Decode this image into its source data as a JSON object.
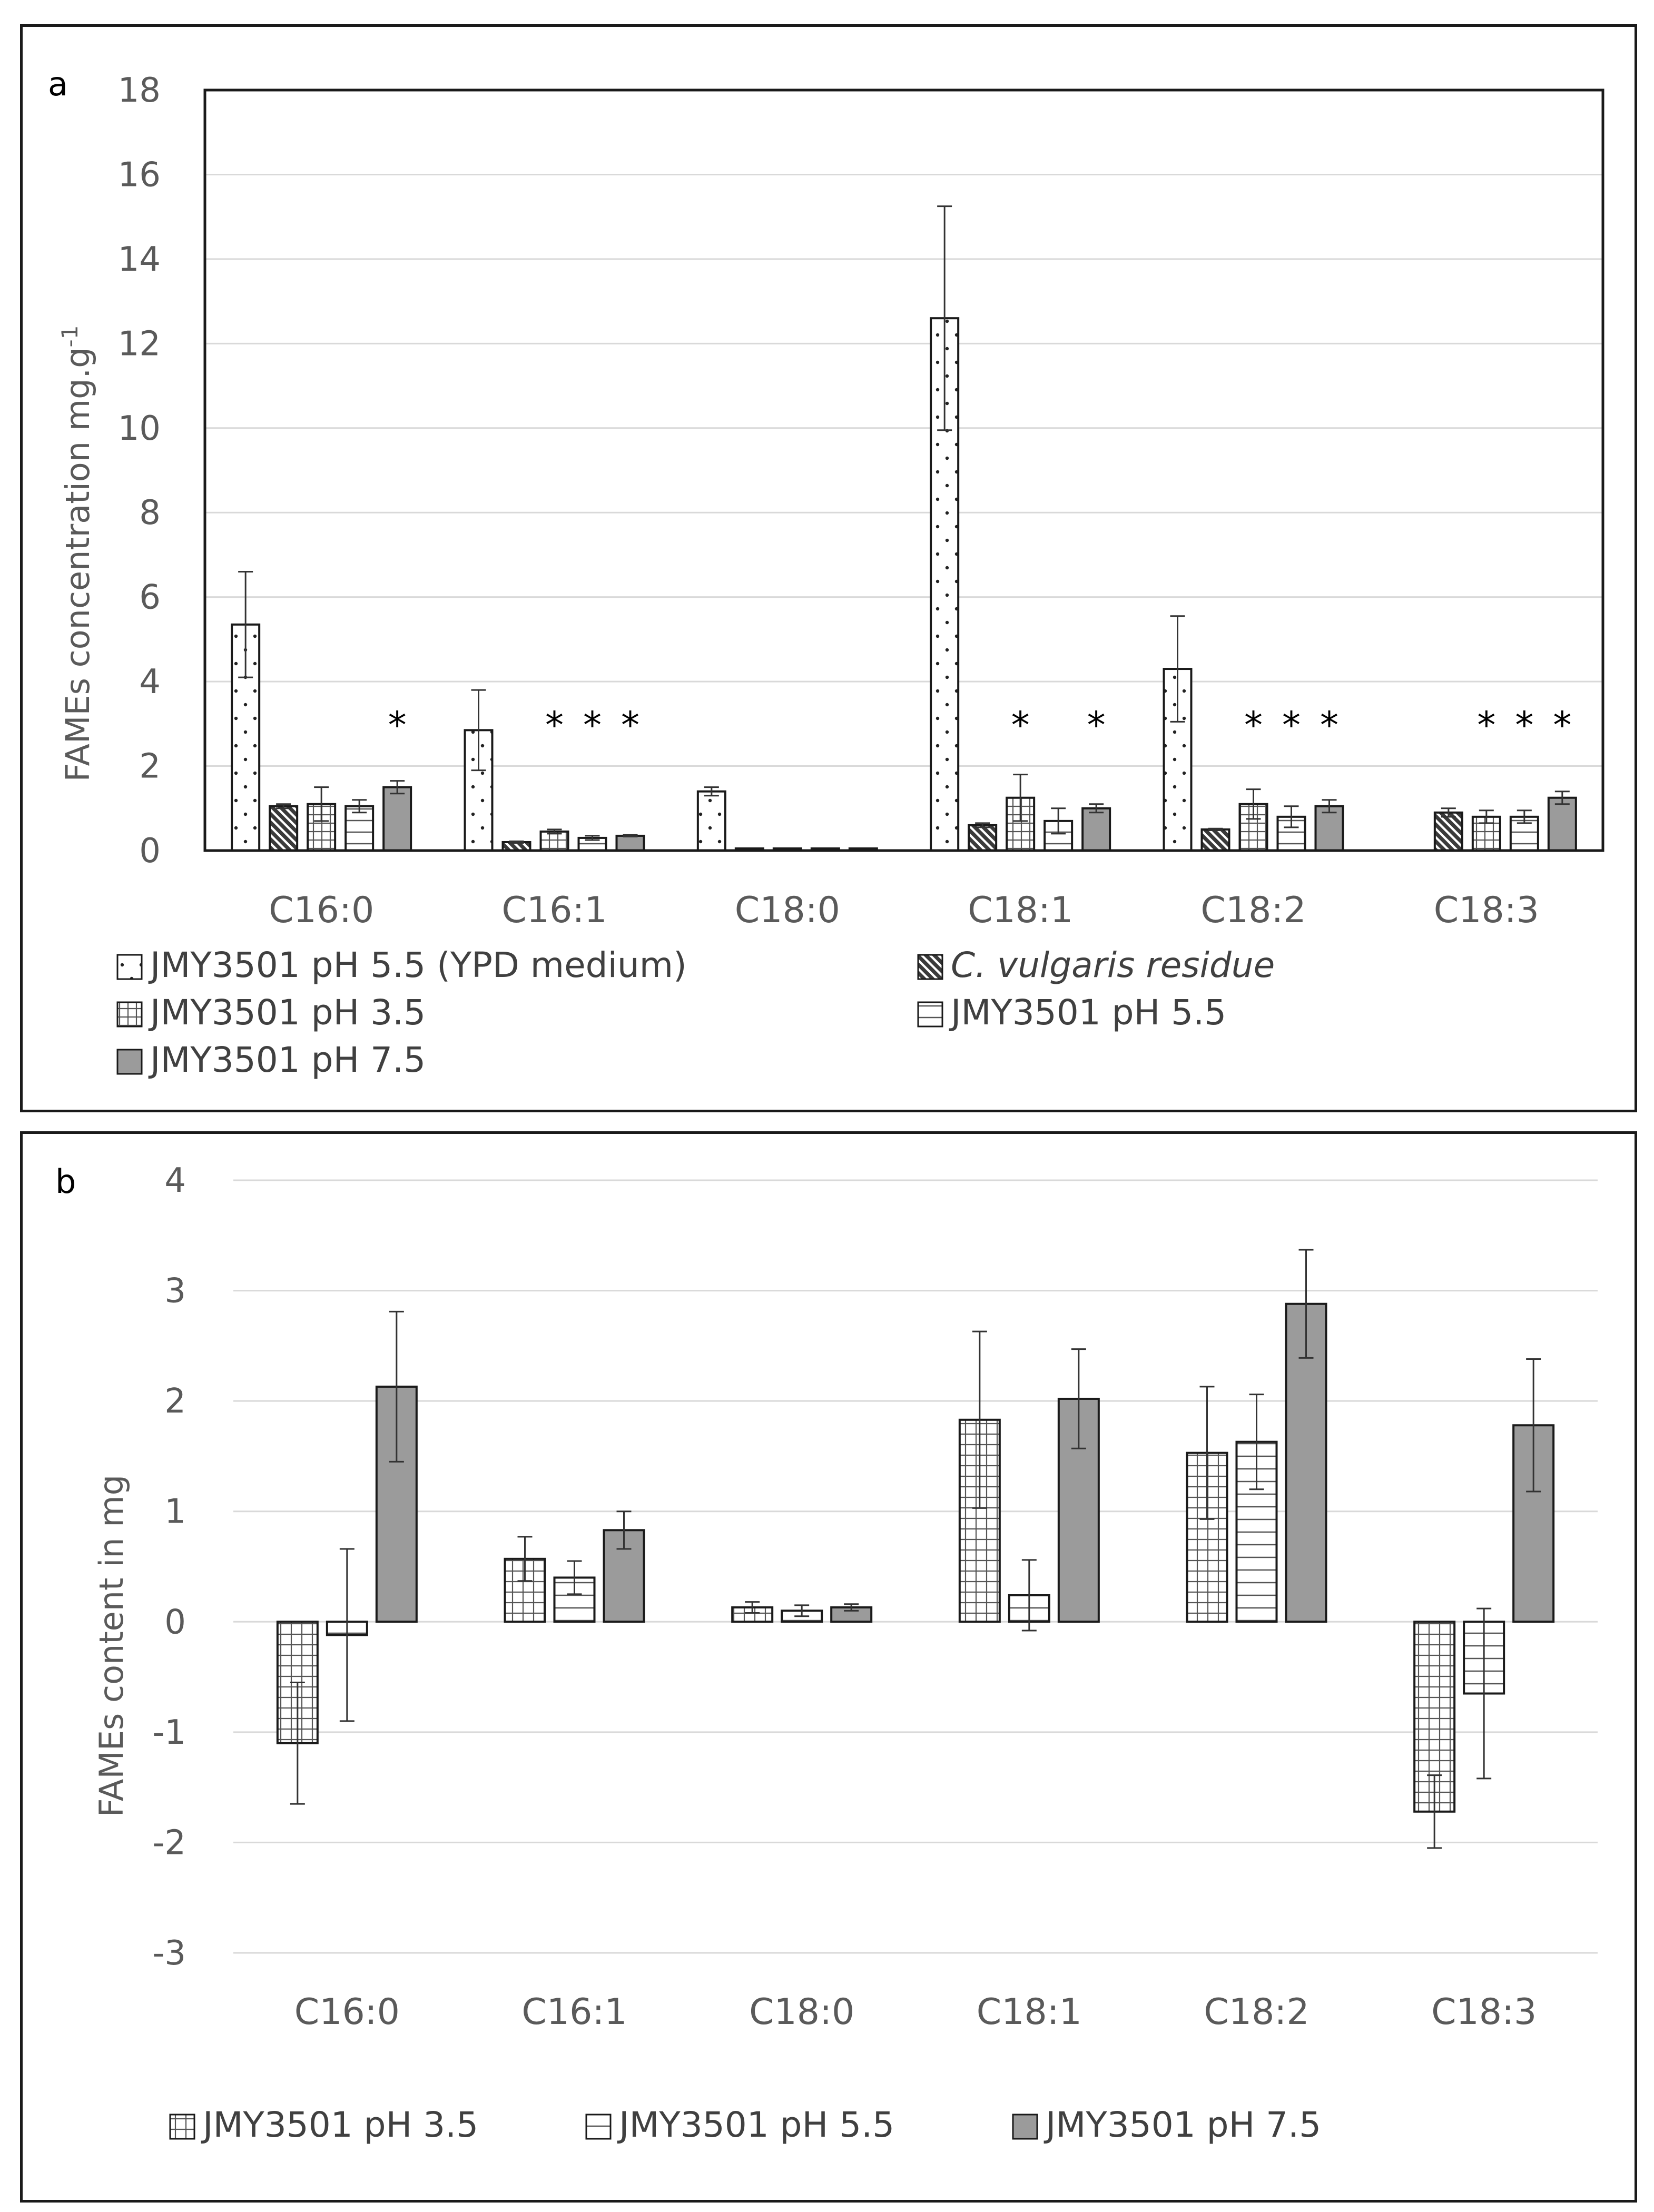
{
  "legend_a": [
    {
      "key": "ypd",
      "label": "JMY3501 pH 5.5 (YPD medium)",
      "pattern": "dots"
    },
    {
      "key": "resid",
      "label": "C. vulgaris residue",
      "pattern": "diag"
    },
    {
      "key": "ph35",
      "label": "JMY3501 pH 3.5",
      "pattern": "grid"
    },
    {
      "key": "ph55",
      "label": "JMY3501 pH 5.5",
      "pattern": "hlines"
    },
    {
      "key": "ph75",
      "label": "JMY3501 pH 7.5",
      "pattern": "solid"
    }
  ],
  "legend_b": [
    {
      "key": "ph35",
      "label": "JMY3501 pH 3.5",
      "pattern": "grid"
    },
    {
      "key": "ph55",
      "label": "JMY3501 pH 5.5",
      "pattern": "hlines"
    },
    {
      "key": "ph75",
      "label": "JMY3501 pH 7.5",
      "pattern": "solid"
    }
  ],
  "colors": {
    "solid": "#9b9b9b",
    "edge": "#1a1a1a",
    "grid": "#d9d9d9",
    "axis": "#1a1a1a",
    "zero": "#d9d9d9"
  },
  "chart_data": [
    {
      "panel_label": "a",
      "type": "bar",
      "ylabel_main": "FAMEs concentration mg.g",
      "ylabel_sup": "-1",
      "ylim": [
        0,
        18
      ],
      "yticks": [
        0,
        2,
        4,
        6,
        8,
        10,
        12,
        14,
        16,
        18
      ],
      "categories": [
        "C16:0",
        "C16:1",
        "C18:0",
        "C18:1",
        "C18:2",
        "C18:3"
      ],
      "series": [
        {
          "key": "ypd",
          "name": "JMY3501 pH 5.5 (YPD medium)",
          "values": [
            5.35,
            2.85,
            1.4,
            12.6,
            4.3,
            null
          ],
          "err": [
            1.25,
            0.95,
            0.1,
            2.65,
            1.25,
            null
          ]
        },
        {
          "key": "resid",
          "name": "C. vulgaris residue",
          "values": [
            1.05,
            0.2,
            0.05,
            0.6,
            0.5,
            0.9
          ],
          "err": [
            0.05,
            0.02,
            0,
            0.05,
            0.02,
            0.1
          ]
        },
        {
          "key": "ph35",
          "name": "JMY3501 pH 3.5",
          "values": [
            1.1,
            0.45,
            0.05,
            1.25,
            1.1,
            0.8
          ],
          "err": [
            0.4,
            0.05,
            0,
            0.55,
            0.35,
            0.15
          ]
        },
        {
          "key": "ph55",
          "name": "JMY3501 pH 5.5",
          "values": [
            1.05,
            0.3,
            0.05,
            0.7,
            0.8,
            0.8
          ],
          "err": [
            0.15,
            0.05,
            0,
            0.3,
            0.25,
            0.15
          ]
        },
        {
          "key": "ph75",
          "name": "JMY3501 pH 7.5",
          "values": [
            1.5,
            0.35,
            0.05,
            1.0,
            1.05,
            1.25
          ],
          "err": [
            0.15,
            0.02,
            0,
            0.1,
            0.15,
            0.15
          ]
        }
      ],
      "significance": [
        {
          "category": "C16:0",
          "series": "ph75"
        },
        {
          "category": "C16:1",
          "series": "ph35"
        },
        {
          "category": "C16:1",
          "series": "ph55"
        },
        {
          "category": "C16:1",
          "series": "ph75"
        },
        {
          "category": "C18:1",
          "series": "ph35"
        },
        {
          "category": "C18:1",
          "series": "ph75"
        },
        {
          "category": "C18:2",
          "series": "ph35"
        },
        {
          "category": "C18:2",
          "series": "ph55"
        },
        {
          "category": "C18:2",
          "series": "ph75"
        },
        {
          "category": "C18:3",
          "series": "ph35"
        },
        {
          "category": "C18:3",
          "series": "ph55"
        },
        {
          "category": "C18:3",
          "series": "ph75"
        }
      ],
      "star_symbol": "*"
    },
    {
      "panel_label": "b",
      "type": "bar",
      "ylabel_main": "FAMEs content in mg",
      "ylim": [
        -3,
        4
      ],
      "yticks": [
        -3,
        -2,
        -1,
        0,
        1,
        2,
        3,
        4
      ],
      "categories": [
        "C16:0",
        "C16:1",
        "C18:0",
        "C18:1",
        "C18:2",
        "C18:3"
      ],
      "series": [
        {
          "key": "ph35",
          "name": "JMY3501 pH 3.5",
          "values": [
            -1.1,
            0.57,
            0.13,
            1.83,
            1.53,
            -1.72
          ],
          "err": [
            0.55,
            0.2,
            0.05,
            0.8,
            0.6,
            0.33
          ]
        },
        {
          "key": "ph55",
          "name": "JMY3501 pH 5.5",
          "values": [
            -0.12,
            0.4,
            0.1,
            0.24,
            1.63,
            -0.65
          ],
          "err": [
            0.78,
            0.15,
            0.05,
            0.32,
            0.43,
            0.77
          ]
        },
        {
          "key": "ph75",
          "name": "JMY3501 pH 7.5",
          "values": [
            2.13,
            0.83,
            0.13,
            2.02,
            2.88,
            1.78
          ],
          "err": [
            0.68,
            0.17,
            0.03,
            0.45,
            0.49,
            0.6
          ]
        }
      ]
    }
  ]
}
